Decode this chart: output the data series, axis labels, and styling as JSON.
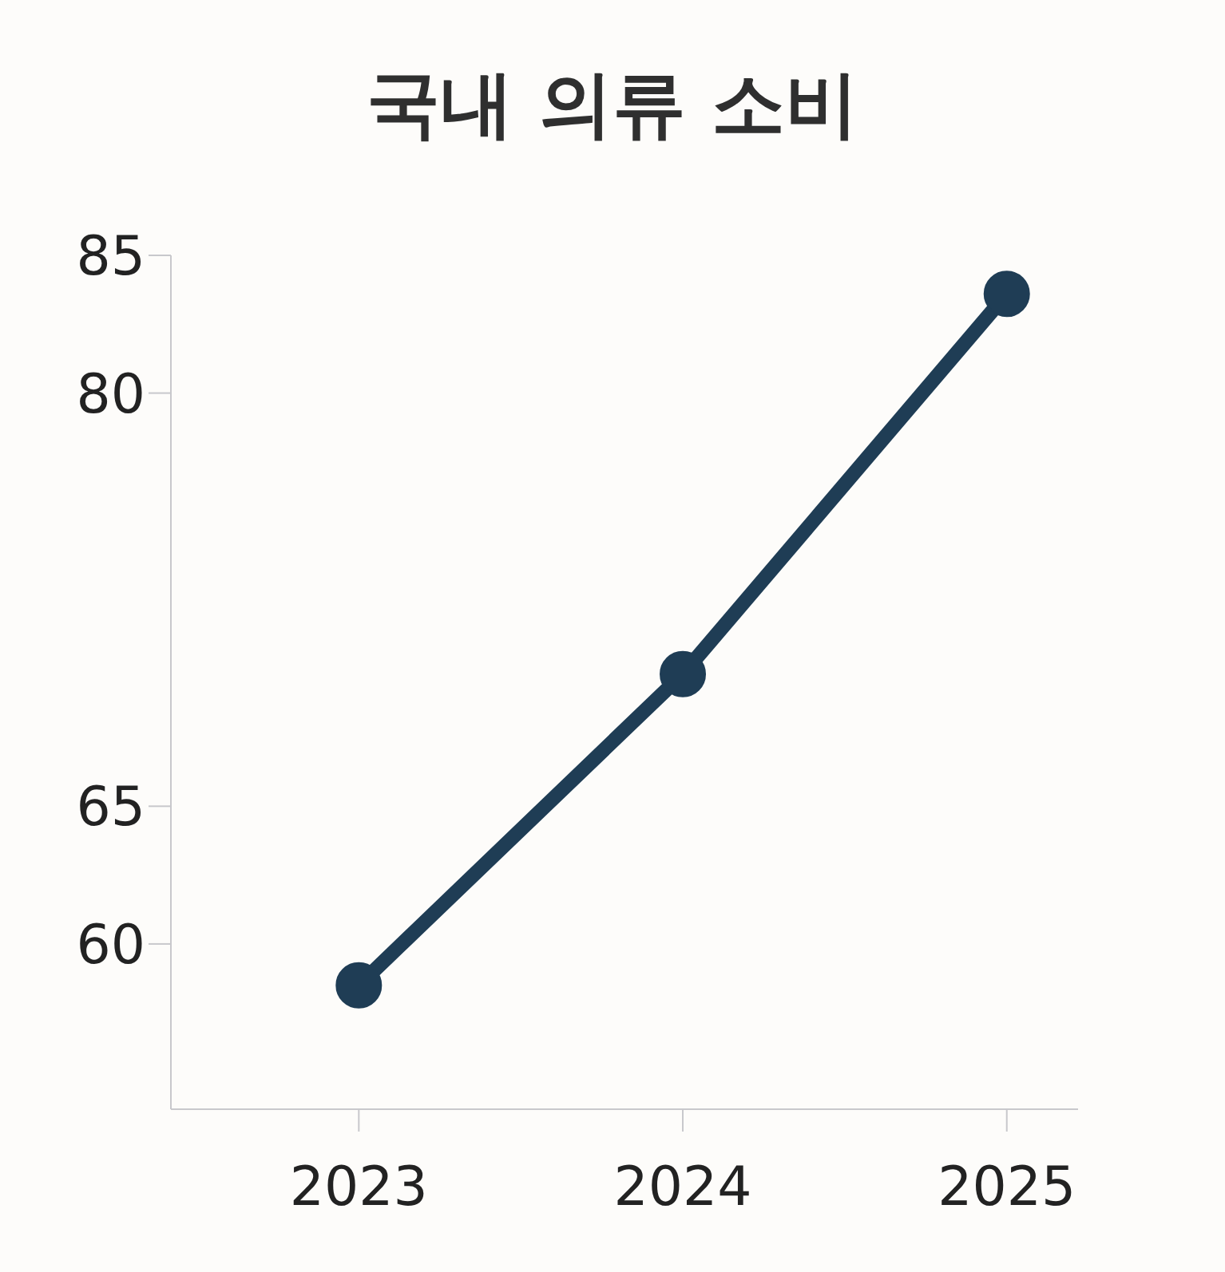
{
  "chart_data": {
    "type": "line",
    "title": "국내 의류 소비",
    "categories": [
      "2023",
      "2024",
      "2025"
    ],
    "series": [
      {
        "color": "#1f3d55",
        "values": [
          58.5,
          69.8,
          83.6
        ]
      }
    ],
    "ylim": [
      54,
      85
    ],
    "yticks": [
      60,
      65,
      80,
      85
    ],
    "marker": "circle",
    "line_style": "solid"
  }
}
